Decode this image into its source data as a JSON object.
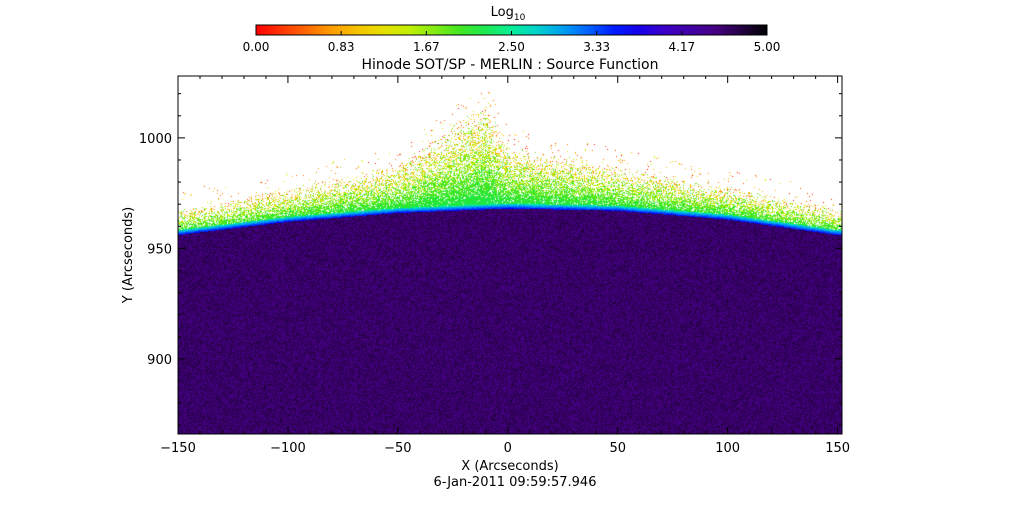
{
  "chart_data": {
    "type": "heatmap",
    "title": "Hinode SOT/SP - MERLIN : Source Function",
    "xlabel": "X (Arcseconds)",
    "ylabel": "Y (Arcseconds)",
    "timestamp": "6-Jan-2011 09:59:57.946",
    "xlim": [
      -150,
      152
    ],
    "ylim": [
      866,
      1028
    ],
    "x_ticks": [
      -150,
      -100,
      -50,
      0,
      50,
      100,
      150
    ],
    "x_tick_labels": [
      "−150",
      "−100",
      "−50",
      "0",
      "50",
      "100",
      "150"
    ],
    "y_ticks": [
      900,
      950,
      1000
    ],
    "y_tick_labels": [
      "900",
      "950",
      "1000"
    ],
    "colorbar": {
      "label_base": "Log",
      "label_sub": "10",
      "min": 0,
      "max": 5,
      "tick_labels": [
        "0.00",
        "0.83",
        "1.67",
        "2.50",
        "3.33",
        "4.17",
        "5.00"
      ]
    },
    "limb_profile": {
      "x": [
        -150,
        -100,
        -50,
        0,
        50,
        100,
        150
      ],
      "y": [
        956,
        962,
        966,
        968,
        967,
        963,
        956
      ]
    },
    "off_limb_emission_extent": {
      "x": [
        -150,
        -100,
        -50,
        -10,
        0,
        50,
        100,
        150
      ],
      "y_top": [
        968,
        977,
        988,
        1016,
        997,
        987,
        978,
        968
      ]
    },
    "disk_log_value": 4.6,
    "limb_log_value": 3.6,
    "off_limb_log_value": 2.0
  }
}
